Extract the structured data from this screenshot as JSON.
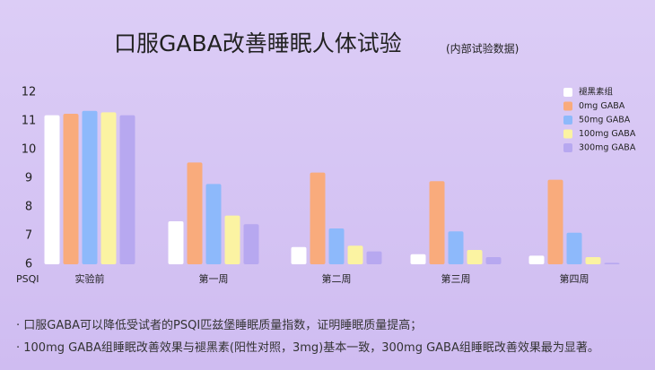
{
  "chart_data": {
    "type": "bar",
    "title": "口服GABA改善睡眠人体试验",
    "subtitle": "(内部试验数据)",
    "y_label": "PSQI",
    "categories": [
      "实验前",
      "第一周",
      "第二周",
      "第三周",
      "第四周"
    ],
    "series": [
      {
        "name": "褪黑素组",
        "color": "#ffffff",
        "values": [
          11.2,
          7.5,
          6.6,
          6.35,
          6.3
        ]
      },
      {
        "name": "0mg GABA",
        "color": "#f9ab7c",
        "values": [
          11.25,
          9.55,
          9.2,
          8.9,
          8.95
        ]
      },
      {
        "name": "50mg GABA",
        "color": "#8db9fb",
        "values": [
          11.35,
          8.8,
          7.25,
          7.15,
          7.1
        ]
      },
      {
        "name": "100mg GABA",
        "color": "#fbf3a2",
        "values": [
          11.3,
          7.7,
          6.65,
          6.5,
          6.25
        ]
      },
      {
        "name": "300mg GABA",
        "color": "#b7a8f0",
        "values": [
          11.2,
          7.4,
          6.45,
          6.25,
          6.05
        ]
      }
    ],
    "ylim": [
      6,
      12
    ],
    "yticks": [
      6,
      7,
      8,
      9,
      10,
      11,
      12
    ],
    "grid": false,
    "legend": "top-right"
  },
  "notes": [
    "· 口服GABA可以降低受试者的PSQI匹兹堡睡眠质量指数，证明睡眠质量提高；",
    "· 100mg GABA组睡眠改善效果与褪黑素(阳性对照，3mg)基本一致，300mg GABA组睡眠改善效果最为显著。"
  ]
}
